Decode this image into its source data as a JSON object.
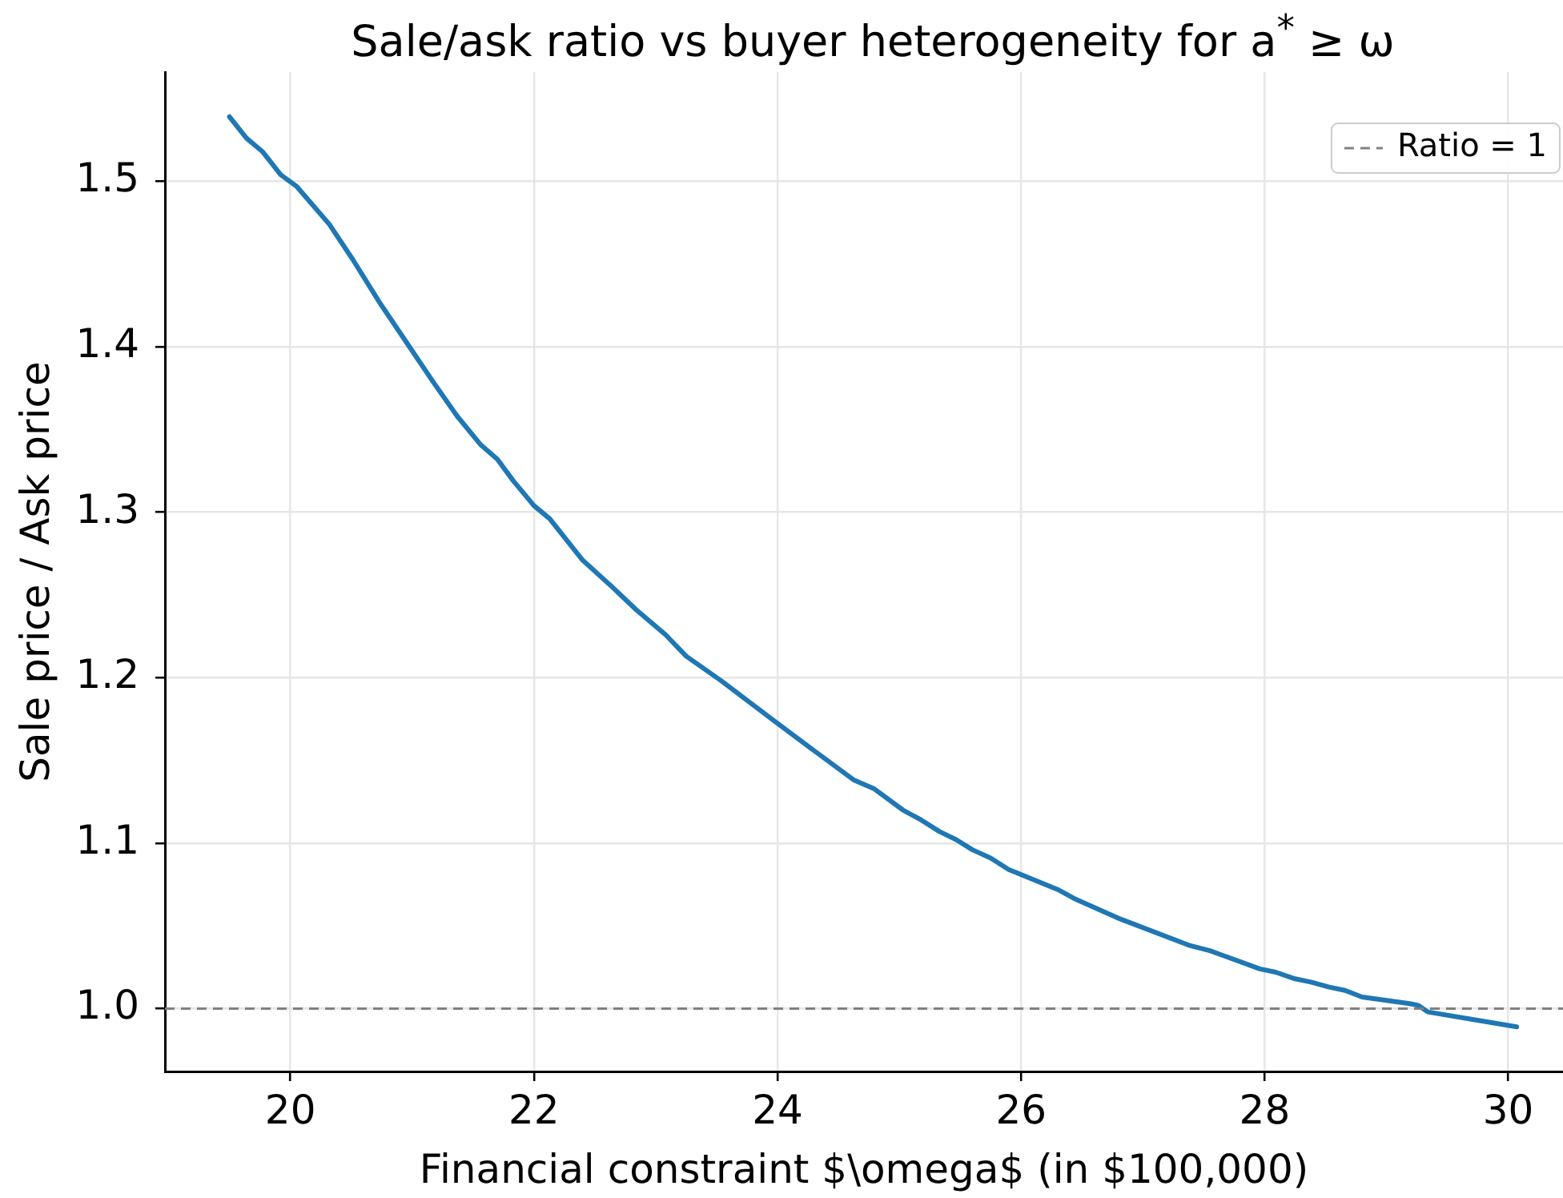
{
  "chart_data": {
    "type": "line",
    "title": "Sale/ask ratio vs buyer heterogeneity for a$^{*}$ ≥ ω",
    "xlabel": "Financial constraint $\\omega$ (in $100,000)",
    "ylabel": "Sale price / Ask price",
    "x": [
      19.5,
      19.64,
      19.77,
      19.92,
      20.05,
      20.32,
      20.51,
      20.73,
      20.95,
      21.17,
      21.37,
      21.56,
      21.7,
      21.83,
      22.0,
      22.13,
      22.4,
      22.64,
      22.84,
      23.08,
      23.25,
      23.54,
      23.97,
      24.28,
      24.63,
      24.79,
      25.03,
      25.18,
      25.33,
      25.47,
      25.6,
      25.75,
      25.9,
      26.3,
      26.45,
      26.82,
      27.39,
      27.55,
      27.96,
      28.09,
      28.25,
      28.38,
      28.53,
      28.66,
      28.8,
      29.19,
      29.26,
      29.34,
      30.07
    ],
    "values": [
      1.539,
      1.526,
      1.518,
      1.504,
      1.497,
      1.474,
      1.453,
      1.427,
      1.403,
      1.379,
      1.358,
      1.341,
      1.332,
      1.319,
      1.304,
      1.296,
      1.271,
      1.255,
      1.241,
      1.226,
      1.213,
      1.198,
      1.174,
      1.157,
      1.138,
      1.133,
      1.12,
      1.114,
      1.107,
      1.102,
      1.096,
      1.091,
      1.084,
      1.072,
      1.066,
      1.054,
      1.038,
      1.035,
      1.024,
      1.022,
      1.018,
      1.016,
      1.013,
      1.011,
      1.007,
      1.003,
      1.002,
      0.998,
      0.989
    ],
    "color": "#1f77b4",
    "xlim": [
      18.97,
      30.45
    ],
    "ylim": [
      0.962,
      1.566
    ],
    "xticks": [
      20,
      22,
      24,
      26,
      28,
      30
    ],
    "yticks": [
      {
        "value": 1,
        "label": "1.0"
      },
      1.1,
      1.2,
      1.3,
      1.4,
      1.5
    ],
    "ref_lines": [
      {
        "axis": "y",
        "value": 1,
        "label": "Ratio = 1",
        "color": "#808080",
        "line_style": "dashed"
      }
    ],
    "grid": true,
    "legend": "top right"
  }
}
